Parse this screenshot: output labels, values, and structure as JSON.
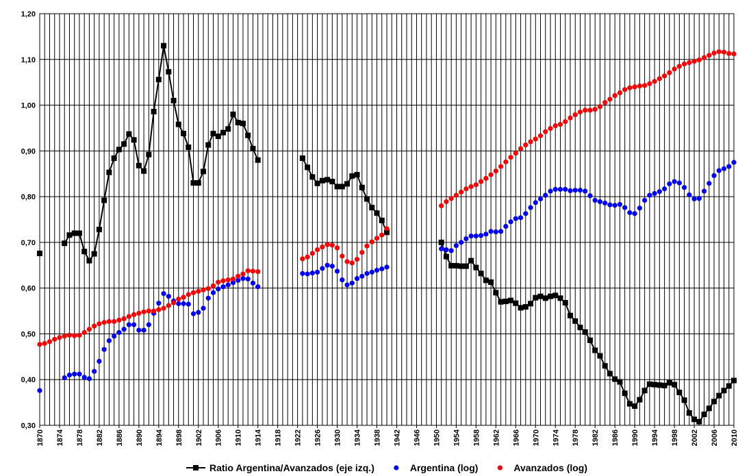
{
  "chart_data": {
    "type": "line",
    "x": [
      1870,
      1871,
      1872,
      1873,
      1874,
      1875,
      1876,
      1877,
      1878,
      1879,
      1880,
      1881,
      1882,
      1883,
      1884,
      1885,
      1886,
      1887,
      1888,
      1889,
      1890,
      1891,
      1892,
      1893,
      1894,
      1895,
      1896,
      1897,
      1898,
      1899,
      1900,
      1901,
      1902,
      1903,
      1904,
      1905,
      1906,
      1907,
      1908,
      1909,
      1910,
      1911,
      1912,
      1913,
      1914,
      1915,
      1916,
      1917,
      1918,
      1919,
      1920,
      1921,
      1922,
      1923,
      1924,
      1925,
      1926,
      1927,
      1928,
      1929,
      1930,
      1931,
      1932,
      1933,
      1934,
      1935,
      1936,
      1937,
      1938,
      1939,
      1940,
      1941,
      1942,
      1943,
      1944,
      1945,
      1946,
      1947,
      1948,
      1949,
      1950,
      1951,
      1952,
      1953,
      1954,
      1955,
      1956,
      1957,
      1958,
      1959,
      1960,
      1961,
      1962,
      1963,
      1964,
      1965,
      1966,
      1967,
      1968,
      1969,
      1970,
      1971,
      1972,
      1973,
      1974,
      1975,
      1976,
      1977,
      1978,
      1979,
      1980,
      1981,
      1982,
      1983,
      1984,
      1985,
      1986,
      1987,
      1988,
      1989,
      1990,
      1991,
      1992,
      1993,
      1994,
      1995,
      1996,
      1997,
      1998,
      1999,
      2000,
      2001,
      2002,
      2003,
      2004,
      2005,
      2006,
      2007,
      2008,
      2009,
      2010
    ],
    "series": [
      {
        "name": "Ratio Argentina/Avanzados (eje izq.)",
        "color": "#000000",
        "marker": "square",
        "line": true,
        "values": [
          0.676,
          null,
          null,
          null,
          null,
          0.698,
          0.716,
          0.72,
          0.72,
          0.68,
          0.66,
          0.675,
          0.728,
          0.792,
          0.853,
          0.884,
          0.903,
          0.915,
          0.937,
          0.924,
          0.868,
          0.856,
          0.892,
          0.986,
          1.056,
          1.13,
          1.073,
          1.01,
          0.958,
          0.938,
          0.908,
          0.83,
          0.83,
          0.855,
          0.913,
          0.938,
          0.932,
          0.94,
          0.948,
          0.98,
          0.962,
          0.96,
          0.934,
          0.905,
          0.88,
          null,
          null,
          null,
          null,
          null,
          null,
          null,
          null,
          0.884,
          0.864,
          0.843,
          0.829,
          0.835,
          0.837,
          0.833,
          0.822,
          0.822,
          0.828,
          0.845,
          0.848,
          0.82,
          0.795,
          0.776,
          0.764,
          0.748,
          0.722,
          null,
          null,
          null,
          null,
          null,
          null,
          null,
          null,
          null,
          null,
          0.7,
          0.669,
          0.649,
          0.649,
          0.648,
          0.648,
          0.66,
          0.645,
          0.632,
          0.617,
          0.613,
          0.59,
          0.57,
          0.571,
          0.573,
          0.567,
          0.557,
          0.559,
          0.566,
          0.579,
          0.582,
          0.578,
          0.582,
          0.584,
          0.578,
          0.568,
          0.54,
          0.528,
          0.514,
          0.504,
          0.486,
          0.464,
          0.452,
          0.43,
          0.413,
          0.401,
          0.395,
          0.37,
          0.347,
          0.342,
          0.356,
          0.376,
          0.39,
          0.389,
          0.388,
          0.387,
          0.393,
          0.389,
          0.372,
          0.355,
          0.327,
          0.313,
          0.308,
          0.324,
          0.337,
          0.352,
          0.365,
          0.376,
          0.386,
          0.398
        ]
      },
      {
        "name": "Argentina (log)",
        "color": "#0000ff",
        "marker": "circle",
        "line": false,
        "values": [
          0.376,
          null,
          null,
          null,
          null,
          0.404,
          0.41,
          0.412,
          0.412,
          0.405,
          0.402,
          0.418,
          0.44,
          0.466,
          0.485,
          0.495,
          0.503,
          0.51,
          0.52,
          0.52,
          0.508,
          0.508,
          0.52,
          0.545,
          0.567,
          0.588,
          0.582,
          0.572,
          0.566,
          0.566,
          0.565,
          0.544,
          0.547,
          0.556,
          0.578,
          0.59,
          0.598,
          0.603,
          0.607,
          0.612,
          0.617,
          0.621,
          0.62,
          0.611,
          0.603,
          null,
          null,
          null,
          null,
          null,
          null,
          null,
          null,
          0.632,
          0.631,
          0.633,
          0.635,
          0.643,
          0.65,
          0.648,
          0.637,
          0.618,
          0.607,
          0.611,
          0.621,
          0.626,
          0.632,
          0.635,
          0.639,
          0.642,
          0.646,
          null,
          null,
          null,
          null,
          null,
          null,
          null,
          null,
          null,
          null,
          0.686,
          0.684,
          0.682,
          0.693,
          0.7,
          0.708,
          0.714,
          0.714,
          0.715,
          0.718,
          0.724,
          0.723,
          0.724,
          0.735,
          0.745,
          0.752,
          0.754,
          0.763,
          0.776,
          0.787,
          0.795,
          0.803,
          0.812,
          0.816,
          0.816,
          0.816,
          0.813,
          0.814,
          0.814,
          0.812,
          0.802,
          0.792,
          0.789,
          0.786,
          0.782,
          0.781,
          0.783,
          0.776,
          0.765,
          0.763,
          0.775,
          0.792,
          0.803,
          0.807,
          0.811,
          0.817,
          0.828,
          0.833,
          0.83,
          0.82,
          0.804,
          0.795,
          0.796,
          0.812,
          0.829,
          0.846,
          0.857,
          0.861,
          0.866,
          0.875
        ]
      },
      {
        "name": "Avanzados (log)",
        "color": "#ff0000",
        "marker": "circle",
        "line": false,
        "values": [
          0.477,
          0.479,
          0.483,
          0.488,
          0.492,
          0.495,
          0.497,
          0.496,
          0.497,
          0.503,
          0.51,
          0.517,
          0.522,
          0.525,
          0.527,
          0.527,
          0.53,
          0.533,
          0.538,
          0.542,
          0.545,
          0.548,
          0.55,
          0.55,
          0.553,
          0.556,
          0.562,
          0.568,
          0.576,
          0.58,
          0.586,
          0.59,
          0.593,
          0.596,
          0.599,
          0.605,
          0.613,
          0.616,
          0.618,
          0.62,
          0.626,
          0.631,
          0.638,
          0.637,
          0.636,
          null,
          null,
          null,
          null,
          null,
          null,
          null,
          null,
          0.664,
          0.668,
          0.676,
          0.684,
          0.69,
          0.695,
          0.694,
          0.688,
          0.67,
          0.658,
          0.655,
          0.663,
          0.678,
          0.692,
          0.701,
          0.709,
          0.716,
          0.73,
          null,
          null,
          null,
          null,
          null,
          null,
          null,
          null,
          null,
          null,
          0.78,
          0.789,
          0.796,
          0.803,
          0.81,
          0.817,
          0.822,
          0.826,
          0.833,
          0.84,
          0.848,
          0.856,
          0.866,
          0.876,
          0.886,
          0.895,
          0.905,
          0.913,
          0.92,
          0.926,
          0.933,
          0.942,
          0.949,
          0.955,
          0.958,
          0.964,
          0.972,
          0.979,
          0.985,
          0.989,
          0.989,
          0.991,
          0.997,
          1.006,
          1.013,
          1.021,
          1.027,
          1.034,
          1.038,
          1.04,
          1.042,
          1.043,
          1.047,
          1.052,
          1.058,
          1.064,
          1.071,
          1.079,
          1.085,
          1.09,
          1.093,
          1.096,
          1.099,
          1.104,
          1.109,
          1.114,
          1.117,
          1.116,
          1.113,
          1.112
        ]
      }
    ],
    "xlim": [
      1870,
      2010
    ],
    "xticks": [
      1870,
      1874,
      1878,
      1882,
      1886,
      1890,
      1894,
      1898,
      1902,
      1906,
      1910,
      1914,
      1918,
      1922,
      1926,
      1930,
      1934,
      1938,
      1942,
      1946,
      1950,
      1954,
      1958,
      1962,
      1966,
      1970,
      1974,
      1978,
      1982,
      1986,
      1990,
      1994,
      1998,
      2002,
      2006,
      2010
    ],
    "ylim": [
      0.3,
      1.2
    ],
    "yticks": [
      {
        "value": 0.3,
        "label": "0,30"
      },
      {
        "value": 0.4,
        "label": "0,40"
      },
      {
        "value": 0.5,
        "label": "0,50"
      },
      {
        "value": 0.6,
        "label": "0,60"
      },
      {
        "value": 0.7,
        "label": "0,70"
      },
      {
        "value": 0.8,
        "label": "0,80"
      },
      {
        "value": 0.9,
        "label": "0,90"
      },
      {
        "value": 1.0,
        "label": "1,00"
      },
      {
        "value": 1.1,
        "label": "1,10"
      },
      {
        "value": 1.2,
        "label": "1,20"
      }
    ],
    "grid": true,
    "legend": "bottom"
  }
}
